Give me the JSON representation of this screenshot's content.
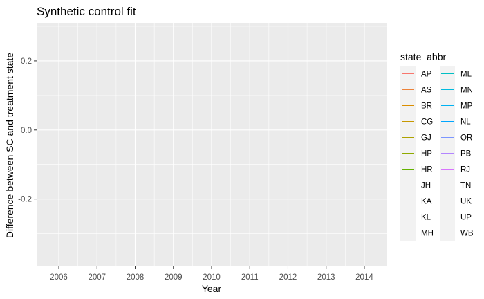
{
  "chart_data": {
    "type": "line",
    "title": "Synthetic control fit",
    "xlabel": "Year",
    "ylabel": "Difference between SC and treatment state",
    "x_ticks": [
      2006,
      2007,
      2008,
      2009,
      2010,
      2011,
      2012,
      2013,
      2014
    ],
    "xlim": [
      2005.42,
      2014.58
    ],
    "y_ticks": [
      0.2,
      0.0,
      -0.2
    ],
    "y_tick_labels": [
      "0.2",
      "0.0",
      "-0.2"
    ],
    "ylim": [
      -0.395,
      0.31
    ],
    "grid": true,
    "legend_title": "state_abbr",
    "legend_position": "right",
    "series": [
      {
        "name": "AP",
        "color": "#F8766D",
        "values": []
      },
      {
        "name": "AS",
        "color": "#EC8239",
        "values": []
      },
      {
        "name": "BR",
        "color": "#DB8E00",
        "values": []
      },
      {
        "name": "CG",
        "color": "#C79800",
        "values": []
      },
      {
        "name": "GJ",
        "color": "#AEA200",
        "values": []
      },
      {
        "name": "HP",
        "color": "#8FAA00",
        "values": []
      },
      {
        "name": "HR",
        "color": "#64B200",
        "values": []
      },
      {
        "name": "JH",
        "color": "#00B81B",
        "values": []
      },
      {
        "name": "KA",
        "color": "#00BD5C",
        "values": []
      },
      {
        "name": "KL",
        "color": "#00C085",
        "values": []
      },
      {
        "name": "MH",
        "color": "#00C1A7",
        "values": []
      },
      {
        "name": "ML",
        "color": "#00BFC4",
        "values": []
      },
      {
        "name": "MN",
        "color": "#00BADE",
        "values": []
      },
      {
        "name": "MP",
        "color": "#00B2F3",
        "values": []
      },
      {
        "name": "NL",
        "color": "#00A6FF",
        "values": []
      },
      {
        "name": "OR",
        "color": "#7C96FF",
        "values": []
      },
      {
        "name": "PB",
        "color": "#B385FF",
        "values": []
      },
      {
        "name": "RJ",
        "color": "#D874FD",
        "values": []
      },
      {
        "name": "TN",
        "color": "#EF67EB",
        "values": []
      },
      {
        "name": "UK",
        "color": "#FD61D3",
        "values": []
      },
      {
        "name": "UP",
        "color": "#FF63B6",
        "values": []
      },
      {
        "name": "WB",
        "color": "#FF6B94",
        "values": []
      }
    ]
  },
  "colors": {
    "panel_background": "#EBEBEB",
    "grid_major": "#FFFFFF",
    "legend_key_background": "#F2F2F2"
  }
}
